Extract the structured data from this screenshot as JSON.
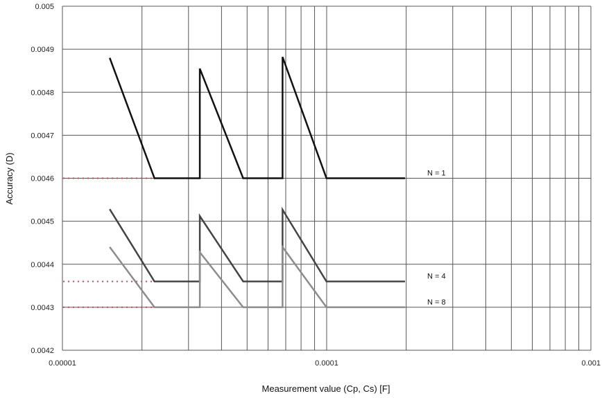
{
  "chart_data": {
    "type": "line",
    "title": "",
    "xlabel": "Measurement value (Cp, Cs) [F]",
    "ylabel": "Accuracy (D)",
    "x_scale": "log",
    "xlim": [
      1e-05,
      0.001
    ],
    "ylim": [
      0.0042,
      0.005
    ],
    "grid": true,
    "x_ticks": [
      "0.00001",
      "0.0001",
      "0.001"
    ],
    "y_ticks": [
      "0.0042",
      "0.0043",
      "0.0044",
      "0.0045",
      "0.0046",
      "0.0047",
      "0.0048",
      "0.0049",
      "0.005"
    ],
    "series": [
      {
        "name": "N = 1",
        "color": "#111111",
        "points": [
          [
            1.51e-05,
            0.00488
          ],
          [
            2.23e-05,
            0.0046
          ],
          [
            3.31e-05,
            0.0046
          ],
          [
            3.31e-05,
            0.004855
          ],
          [
            4.83e-05,
            0.0046
          ],
          [
            6.81e-05,
            0.0046
          ],
          [
            6.81e-05,
            0.004882
          ],
          [
            9.98e-05,
            0.0046
          ],
          [
            0.000198,
            0.0046
          ]
        ],
        "floor": 0.0046
      },
      {
        "name": "N = 4",
        "color": "#444444",
        "points": [
          [
            1.51e-05,
            0.004528
          ],
          [
            2.23e-05,
            0.00436
          ],
          [
            3.31e-05,
            0.00436
          ],
          [
            3.31e-05,
            0.004512
          ],
          [
            4.83e-05,
            0.00436
          ],
          [
            6.81e-05,
            0.00436
          ],
          [
            6.81e-05,
            0.004527
          ],
          [
            9.98e-05,
            0.00436
          ],
          [
            0.000198,
            0.00436
          ]
        ],
        "floor": 0.00436
      },
      {
        "name": "N = 8",
        "color": "#8c8c8c",
        "points": [
          [
            1.51e-05,
            0.00444
          ],
          [
            2.23e-05,
            0.0043
          ],
          [
            3.31e-05,
            0.0043
          ],
          [
            3.31e-05,
            0.004428
          ],
          [
            4.83e-05,
            0.0043
          ],
          [
            6.81e-05,
            0.0043
          ],
          [
            6.81e-05,
            0.00444
          ],
          [
            9.98e-05,
            0.0043
          ],
          [
            0.000198,
            0.0043
          ]
        ],
        "floor": 0.0043
      }
    ],
    "reference_line_color": "#e0405a"
  }
}
